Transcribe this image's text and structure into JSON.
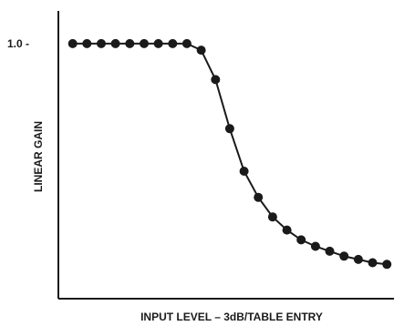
{
  "chart_data": {
    "type": "line",
    "title": "",
    "xlabel": "INPUT LEVEL – 3dB/TABLE ENTRY",
    "ylabel": "LINEAR GAIN",
    "y_tick_labels": [
      {
        "value": 1.0,
        "label": "1.0 -"
      }
    ],
    "x": [
      1,
      2,
      3,
      4,
      5,
      6,
      7,
      8,
      9,
      10,
      11,
      12,
      13,
      14,
      15,
      16,
      17,
      18,
      19,
      20,
      21,
      22,
      23
    ],
    "series": [
      {
        "values": [
          1.0,
          1.0,
          1.0,
          1.0,
          1.0,
          1.0,
          1.0,
          1.0,
          1.0,
          0.98,
          0.89,
          0.74,
          0.61,
          0.53,
          0.47,
          0.43,
          0.4,
          0.38,
          0.365,
          0.35,
          0.34,
          0.33,
          0.325
        ]
      }
    ],
    "xlim": [
      0,
      23.5
    ],
    "ylim": [
      0.22,
      1.1
    ],
    "grid": false,
    "legend": "none",
    "colors": {
      "line": "#1a1a1a",
      "marker": "#1a1a1a",
      "axis": "#1a1a1a"
    }
  }
}
